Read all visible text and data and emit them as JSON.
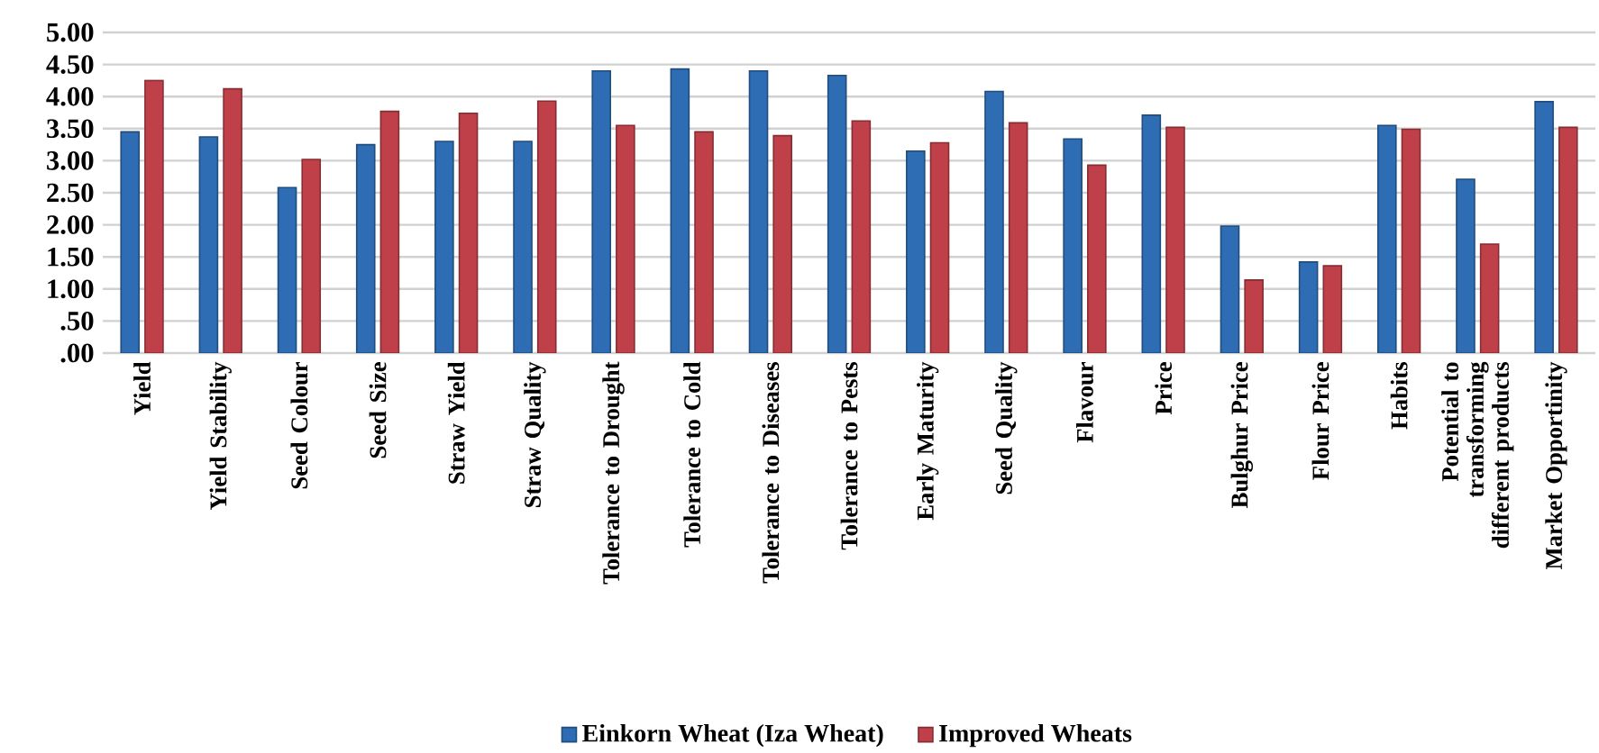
{
  "chart_data": {
    "type": "bar",
    "categories": [
      "Yield",
      "Yield Stability",
      "Seed Colour",
      "Seed Size",
      "Straw Yield",
      "Straw Quality",
      "Tolerance to Drought",
      "Tolerance to Cold",
      "Tolerance to Diseases",
      "Tolerance to Pests",
      "Early Maturity",
      "Seed Quality",
      "Flavour",
      "Price",
      "Bulghur Price",
      "Flour Price",
      "Habits",
      "Potential to transforming different products",
      "Market Opportinity"
    ],
    "series": [
      {
        "name": "Einkorn Wheat (Iza Wheat)",
        "color": "#2e6db4",
        "values": [
          3.45,
          3.37,
          2.58,
          3.25,
          3.3,
          3.3,
          4.4,
          4.43,
          4.4,
          4.33,
          3.15,
          4.08,
          3.34,
          3.71,
          1.98,
          1.42,
          3.55,
          2.71,
          3.92
        ]
      },
      {
        "name": "Improved Wheats",
        "color": "#c0404a",
        "values": [
          4.25,
          4.12,
          3.02,
          3.77,
          3.74,
          3.93,
          3.55,
          3.45,
          3.39,
          3.62,
          3.28,
          3.59,
          2.93,
          3.52,
          1.14,
          1.36,
          3.49,
          1.7,
          3.52
        ]
      }
    ],
    "ylim": [
      0,
      5
    ],
    "yticks": [
      {
        "value": 0,
        "label": ".00"
      },
      {
        "value": 0.5,
        "label": ".50"
      },
      {
        "value": 1,
        "label": "1.00"
      },
      {
        "value": 1.5,
        "label": "1.50"
      },
      {
        "value": 2,
        "label": "2.00"
      },
      {
        "value": 2.5,
        "label": "2.50"
      },
      {
        "value": 3,
        "label": "3.00"
      },
      {
        "value": 3.5,
        "label": "3.50"
      },
      {
        "value": 4,
        "label": "4.00"
      },
      {
        "value": 4.5,
        "label": "4.50"
      },
      {
        "value": 5,
        "label": "5.00"
      }
    ],
    "grid": "y",
    "legend": "bottom"
  }
}
